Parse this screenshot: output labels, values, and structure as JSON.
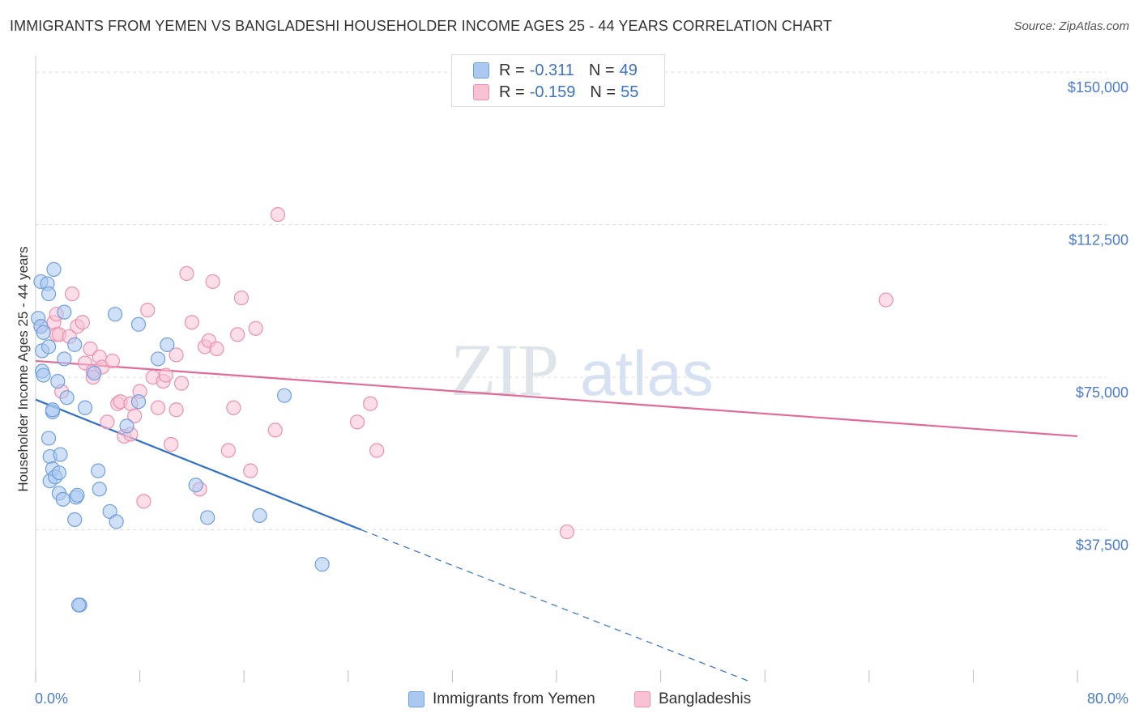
{
  "title": "IMMIGRANTS FROM YEMEN VS BANGLADESHI HOUSEHOLDER INCOME AGES 25 - 44 YEARS CORRELATION CHART",
  "source": "Source: ZipAtlas.com",
  "legend": {
    "rows": [
      {
        "r_label": "R =",
        "r_value": "-0.311",
        "n_label": "N =",
        "n_value": "49"
      },
      {
        "r_label": "R =",
        "r_value": "-0.159",
        "n_label": "N =",
        "n_value": "55"
      }
    ],
    "series_names": [
      "Immigrants from Yemen",
      "Bangladeshis"
    ]
  },
  "colors": {
    "yemen_fill": "#aac8f0",
    "yemen_stroke": "#6f9fe0",
    "yemen_line": "#2f6fd0",
    "bangla_fill": "#f8c2d4",
    "bangla_stroke": "#ee8fb0",
    "bangla_line": "#e06a98",
    "accent_text": "#4a7bd0",
    "grid": "#dddddd"
  },
  "watermark": {
    "zip": "ZIP",
    "atlas": "atlas"
  },
  "chart_data": {
    "type": "scatter",
    "title": "IMMIGRANTS FROM YEMEN VS BANGLADESHI HOUSEHOLDER INCOME AGES 25 - 44 YEARS CORRELATION CHART",
    "xlabel": "",
    "ylabel": "Householder Income Ages 25 - 44 years",
    "xlim": [
      0,
      80
    ],
    "ylim": [
      0,
      155000
    ],
    "x_tick_labels": {
      "left": "0.0%",
      "right": "80.0%"
    },
    "y_ticks": [
      {
        "value": 37500,
        "label": "$37,500"
      },
      {
        "value": 75000,
        "label": "$75,000"
      },
      {
        "value": 112500,
        "label": "$112,500"
      },
      {
        "value": 150000,
        "label": "$150,000"
      }
    ],
    "series": [
      {
        "name": "Immigrants from Yemen",
        "r": -0.311,
        "n": 49,
        "points": [
          [
            0.2,
            89500
          ],
          [
            0.4,
            98500
          ],
          [
            0.4,
            87500
          ],
          [
            0.5,
            81500
          ],
          [
            0.5,
            76500
          ],
          [
            0.6,
            75500
          ],
          [
            0.6,
            86000
          ],
          [
            0.9,
            98000
          ],
          [
            1.0,
            95500
          ],
          [
            1.0,
            82500
          ],
          [
            1.0,
            60000
          ],
          [
            1.1,
            49500
          ],
          [
            1.1,
            55500
          ],
          [
            1.3,
            66500
          ],
          [
            1.3,
            67000
          ],
          [
            1.3,
            52500
          ],
          [
            1.4,
            101500
          ],
          [
            1.5,
            50500
          ],
          [
            1.7,
            74000
          ],
          [
            1.8,
            46500
          ],
          [
            1.8,
            51500
          ],
          [
            1.9,
            56000
          ],
          [
            2.1,
            45000
          ],
          [
            2.2,
            91000
          ],
          [
            2.2,
            79500
          ],
          [
            2.4,
            70000
          ],
          [
            3.0,
            83000
          ],
          [
            3.1,
            45500
          ],
          [
            3.0,
            40000
          ],
          [
            3.2,
            46000
          ],
          [
            3.4,
            19000
          ],
          [
            3.3,
            19000
          ],
          [
            3.8,
            67500
          ],
          [
            4.5,
            76000
          ],
          [
            4.8,
            52000
          ],
          [
            4.9,
            47500
          ],
          [
            5.7,
            42000
          ],
          [
            6.1,
            90500
          ],
          [
            6.2,
            39500
          ],
          [
            7.0,
            63000
          ],
          [
            7.9,
            69000
          ],
          [
            7.9,
            88000
          ],
          [
            9.4,
            79500
          ],
          [
            10.1,
            83000
          ],
          [
            12.3,
            48500
          ],
          [
            13.2,
            40500
          ],
          [
            17.2,
            41000
          ],
          [
            19.1,
            70500
          ],
          [
            22.0,
            29000
          ]
        ],
        "trend": {
          "x0": 0,
          "y0": 69500,
          "x1": 25.0,
          "y1": 37500,
          "dash_to_x": 55.0,
          "dash_to_y": 0
        }
      },
      {
        "name": "Bangladeshis",
        "r": -0.159,
        "n": 55,
        "points": [
          [
            0.4,
            87500
          ],
          [
            1.4,
            88500
          ],
          [
            1.6,
            90500
          ],
          [
            1.6,
            85500
          ],
          [
            1.8,
            85500
          ],
          [
            2.0,
            71500
          ],
          [
            2.6,
            85000
          ],
          [
            2.8,
            95500
          ],
          [
            3.2,
            87500
          ],
          [
            3.6,
            88500
          ],
          [
            3.8,
            78500
          ],
          [
            4.2,
            82000
          ],
          [
            4.4,
            76500
          ],
          [
            4.4,
            75000
          ],
          [
            4.9,
            80000
          ],
          [
            5.1,
            77500
          ],
          [
            5.5,
            64000
          ],
          [
            5.9,
            79000
          ],
          [
            6.3,
            68500
          ],
          [
            6.5,
            69000
          ],
          [
            6.8,
            60500
          ],
          [
            7.3,
            68500
          ],
          [
            7.3,
            61000
          ],
          [
            7.6,
            65500
          ],
          [
            8.0,
            71500
          ],
          [
            8.3,
            44500
          ],
          [
            8.6,
            91500
          ],
          [
            9.0,
            75000
          ],
          [
            9.4,
            67500
          ],
          [
            9.8,
            74000
          ],
          [
            10.0,
            75500
          ],
          [
            10.4,
            58500
          ],
          [
            10.8,
            80500
          ],
          [
            10.8,
            67000
          ],
          [
            11.2,
            73500
          ],
          [
            11.6,
            100500
          ],
          [
            12.0,
            88500
          ],
          [
            12.6,
            47500
          ],
          [
            13.0,
            82500
          ],
          [
            13.3,
            84000
          ],
          [
            13.6,
            98500
          ],
          [
            13.9,
            82000
          ],
          [
            14.8,
            57000
          ],
          [
            15.2,
            67500
          ],
          [
            15.5,
            85500
          ],
          [
            15.8,
            94500
          ],
          [
            16.9,
            87000
          ],
          [
            16.5,
            52000
          ],
          [
            18.4,
            62000
          ],
          [
            18.6,
            115000
          ],
          [
            24.7,
            64000
          ],
          [
            25.7,
            68500
          ],
          [
            26.2,
            57000
          ],
          [
            40.8,
            37000
          ],
          [
            65.3,
            94000
          ]
        ],
        "trend": {
          "x0": 0,
          "y0": 79000,
          "x1": 80.0,
          "y1": 60500
        }
      }
    ]
  }
}
